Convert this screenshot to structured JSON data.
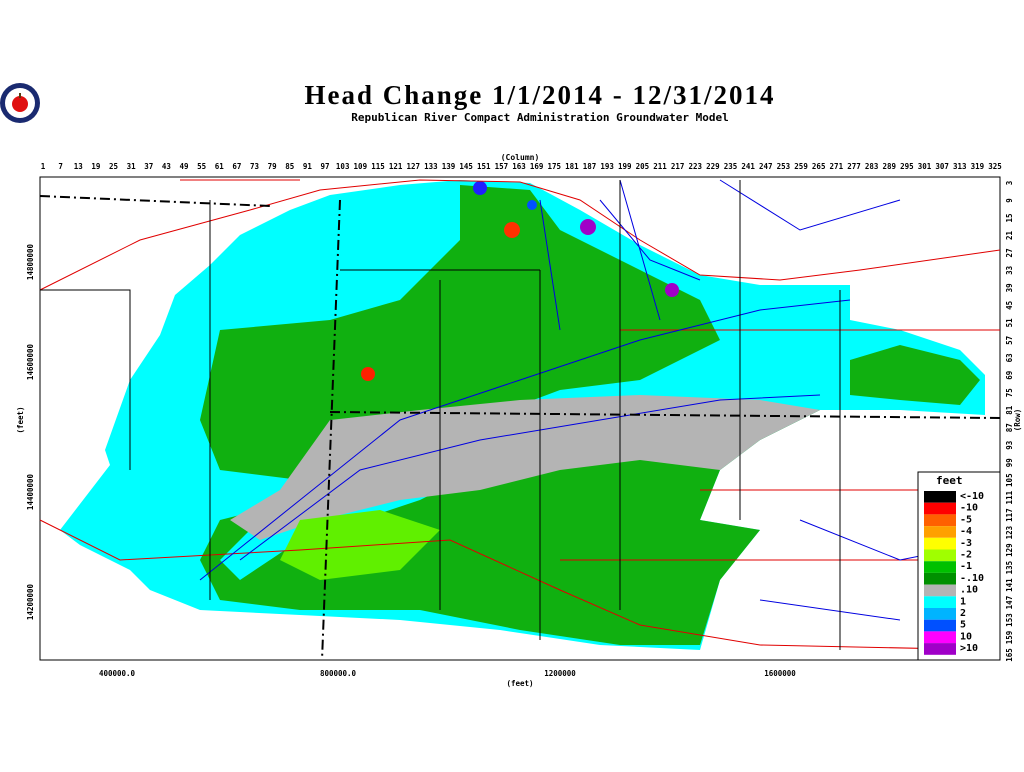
{
  "header": {
    "title": "Head Change 1/1/2014 - 12/31/2014",
    "subtitle": "Republican River Compact Administration Groundwater Model"
  },
  "top_axis": {
    "label": "(Column)",
    "ticks": [
      "1",
      "7",
      "13",
      "19",
      "25",
      "31",
      "37",
      "43",
      "49",
      "55",
      "61",
      "67",
      "73",
      "79",
      "85",
      "91",
      "97",
      "103",
      "109",
      "115",
      "121",
      "127",
      "133",
      "139",
      "145",
      "151",
      "157",
      "163",
      "169",
      "175",
      "181",
      "187",
      "193",
      "199",
      "205",
      "211",
      "217",
      "223",
      "229",
      "235",
      "241",
      "247",
      "253",
      "259",
      "265",
      "271",
      "277",
      "283",
      "289",
      "295",
      "301",
      "307",
      "313",
      "319",
      "325"
    ]
  },
  "right_axis": {
    "label": "(Row)",
    "ticks": [
      "3",
      "9",
      "15",
      "21",
      "27",
      "33",
      "39",
      "45",
      "51",
      "57",
      "63",
      "69",
      "75",
      "81",
      "87",
      "93",
      "99",
      "105",
      "111",
      "117",
      "123",
      "129",
      "135",
      "141",
      "147",
      "153",
      "159",
      "165"
    ]
  },
  "left_axis": {
    "label": "(feet)",
    "ticks": [
      "14800000",
      "14600000",
      "14400000",
      "14200000"
    ]
  },
  "bottom_axis": {
    "label": "(feet)",
    "ticks": [
      "400000.0",
      "800000.0",
      "1200000",
      "1600000"
    ]
  },
  "legend": {
    "title": "feet",
    "items": [
      {
        "label": "<-10",
        "color": "#000000"
      },
      {
        "label": "-10",
        "color": "#ff0000"
      },
      {
        "label": "-5",
        "color": "#ff6000"
      },
      {
        "label": "-4",
        "color": "#ffa000"
      },
      {
        "label": "-3",
        "color": "#ffff00"
      },
      {
        "label": "-2",
        "color": "#a0ff00"
      },
      {
        "label": "-1",
        "color": "#00c000"
      },
      {
        "label": "-.10",
        "color": "#009000"
      },
      {
        "label": ".10",
        "color": "#b4b4b4"
      },
      {
        "label": "1",
        "color": "#00ffff"
      },
      {
        "label": "2",
        "color": "#00b4ff"
      },
      {
        "label": "5",
        "color": "#0050ff"
      },
      {
        "label": "10",
        "color": "#ff00ff"
      },
      {
        "label": ">10",
        "color": "#a000c8"
      }
    ]
  }
}
